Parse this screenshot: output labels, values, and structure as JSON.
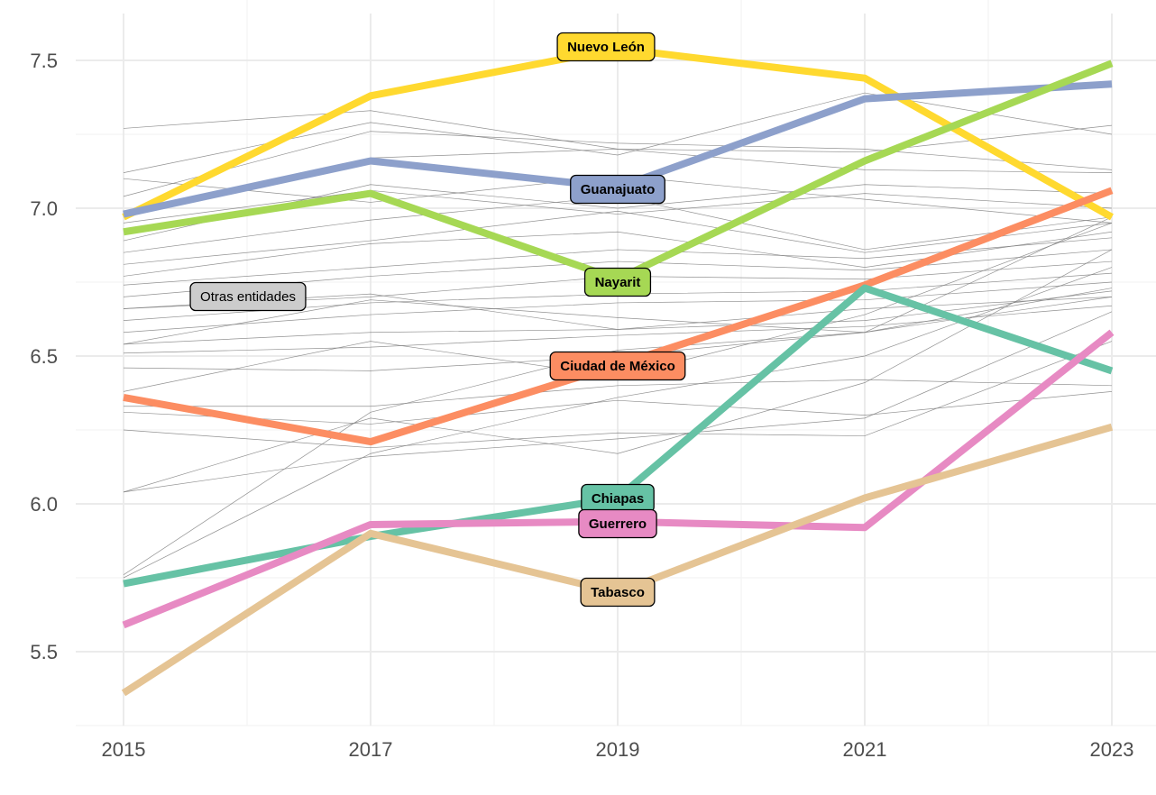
{
  "chart_data": {
    "type": "line",
    "title": "",
    "xlabel": "",
    "ylabel": "",
    "x": [
      2015,
      2017,
      2019,
      2021,
      2023
    ],
    "x_tick_labels": [
      "2015",
      "2017",
      "2019",
      "2021",
      "2023"
    ],
    "y_tick_labels": [
      "5.5",
      "6.0",
      "6.5",
      "7.0",
      "7.5"
    ],
    "y_ticks": [
      5.5,
      6.0,
      6.5,
      7.0,
      7.5
    ],
    "xlim": [
      2014.6,
      2023.35
    ],
    "ylim": [
      5.25,
      7.7
    ],
    "grid": true,
    "legend": "none (direct labels)",
    "series": [
      {
        "name": "Nuevo León",
        "color": "#FFD92F",
        "values": [
          6.97,
          7.38,
          7.54,
          7.44,
          6.97
        ],
        "label_year": 2019
      },
      {
        "name": "Guanajuato",
        "color": "#8DA0CB",
        "values": [
          6.98,
          7.16,
          7.07,
          7.37,
          7.42
        ],
        "label_year": 2019
      },
      {
        "name": "Nayarit",
        "color": "#A6D854",
        "values": [
          6.92,
          7.05,
          6.76,
          7.16,
          7.49
        ],
        "label_year": 2019
      },
      {
        "name": "Ciudad de México",
        "color": "#FC8D62",
        "values": [
          6.36,
          6.21,
          6.47,
          6.74,
          7.06
        ],
        "label_year": 2019
      },
      {
        "name": "Chiapas",
        "color": "#66C2A5",
        "values": [
          5.73,
          5.89,
          6.02,
          6.73,
          6.45
        ],
        "label_year": 2019
      },
      {
        "name": "Guerrero",
        "color": "#E78AC3",
        "values": [
          5.59,
          5.93,
          5.94,
          5.92,
          6.58
        ],
        "label_year": 2019
      },
      {
        "name": "Tabasco",
        "color": "#E5C494",
        "values": [
          5.36,
          5.9,
          5.7,
          6.02,
          6.26
        ],
        "label_year": 2019
      }
    ],
    "other_series_label": "Otras entidades",
    "other_series_color": "#7F7F7F",
    "other_series": [
      [
        7.27,
        7.33,
        7.2,
        7.19,
        7.28
      ],
      [
        7.12,
        7.29,
        7.18,
        7.39,
        7.25
      ],
      [
        7.04,
        7.26,
        7.22,
        7.2,
        7.13
      ],
      [
        6.99,
        7.17,
        7.2,
        7.13,
        7.12
      ],
      [
        7.1,
        7.02,
        7.11,
        7.03,
        6.95
      ],
      [
        6.89,
        7.08,
        7.0,
        7.08,
        7.05
      ],
      [
        6.85,
        6.96,
        7.04,
        6.86,
        6.97
      ],
      [
        6.81,
        6.89,
        6.99,
        6.85,
        6.95
      ],
      [
        6.77,
        6.88,
        6.92,
        6.8,
        6.92
      ],
      [
        6.74,
        6.8,
        6.86,
        6.83,
        6.9
      ],
      [
        6.7,
        6.77,
        6.82,
        6.79,
        6.86
      ],
      [
        6.66,
        6.7,
        6.77,
        6.76,
        6.82
      ],
      [
        6.62,
        6.68,
        6.71,
        6.72,
        6.78
      ],
      [
        6.58,
        6.64,
        6.68,
        6.69,
        6.75
      ],
      [
        6.54,
        6.58,
        6.59,
        6.62,
        6.72
      ],
      [
        6.54,
        6.69,
        6.63,
        6.58,
        6.7
      ],
      [
        6.51,
        6.53,
        6.57,
        6.6,
        6.67
      ],
      [
        6.46,
        6.45,
        6.5,
        6.58,
        6.73
      ],
      [
        6.38,
        6.55,
        6.43,
        6.64,
        6.95
      ],
      [
        6.33,
        6.33,
        6.4,
        6.42,
        6.4
      ],
      [
        6.31,
        6.27,
        6.35,
        6.3,
        6.38
      ],
      [
        6.25,
        6.19,
        6.24,
        6.23,
        6.55
      ],
      [
        6.04,
        6.16,
        6.22,
        6.29,
        6.65
      ],
      [
        6.04,
        6.29,
        6.17,
        6.41,
        6.86
      ],
      [
        5.76,
        6.31,
        6.52,
        6.58,
        6.97
      ],
      [
        5.75,
        6.17,
        6.36,
        6.5,
        6.8
      ],
      [
        6.66,
        6.71,
        6.59,
        6.66,
        6.7
      ],
      [
        6.95,
        7.06,
        6.98,
        7.05,
        7.0
      ]
    ]
  }
}
